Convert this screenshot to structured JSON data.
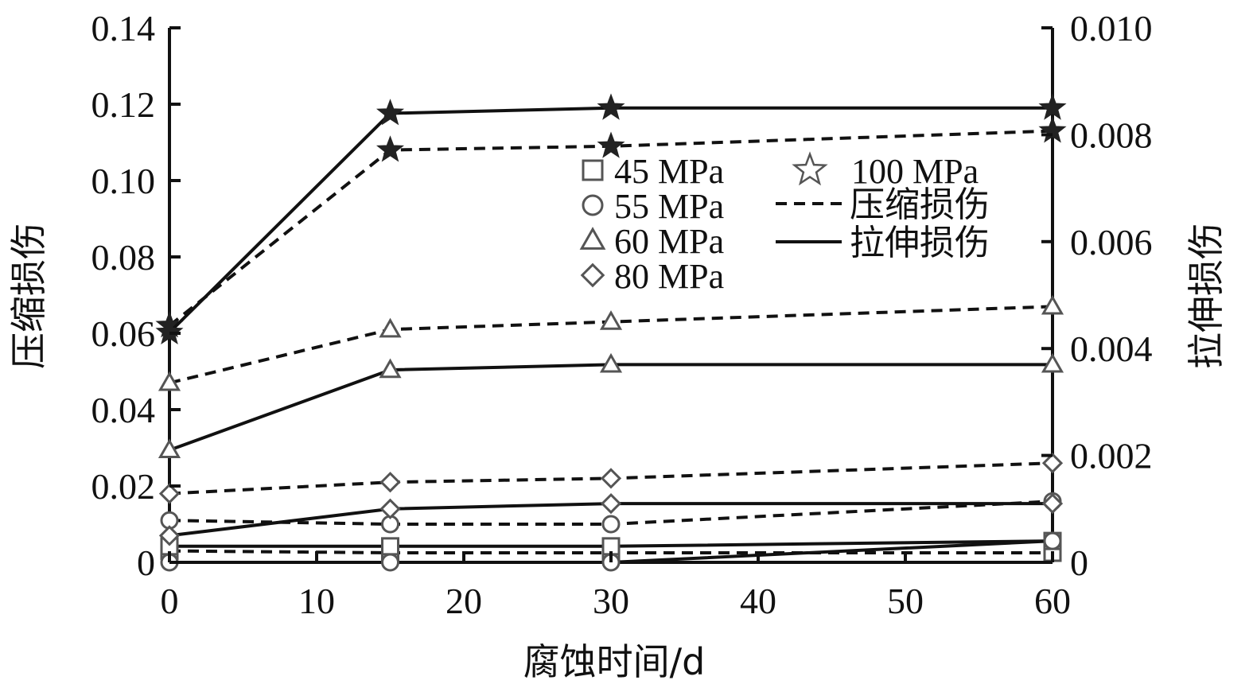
{
  "chart_data": {
    "type": "line",
    "xlabel": "腐蚀时间/d",
    "ylabel": "压缩损伤",
    "y2label": "拉伸损伤",
    "xlim": [
      0,
      60
    ],
    "ylim": [
      0,
      0.14
    ],
    "y2lim": [
      0,
      0.01
    ],
    "x_ticks": [
      0,
      10,
      20,
      30,
      40,
      50,
      60
    ],
    "x_tick_labels": [
      "0",
      "10",
      "20",
      "30",
      "40",
      "50",
      "60"
    ],
    "y_ticks": [
      0,
      0.02,
      0.04,
      0.06,
      0.08,
      0.1,
      0.12,
      0.14
    ],
    "y_tick_labels": [
      "0",
      "0.02",
      "0.04",
      "0.06",
      "0.08",
      "0.10",
      "0.12",
      "0.14"
    ],
    "y2_ticks": [
      0,
      0.002,
      0.004,
      0.006,
      0.008,
      0.01
    ],
    "y2_tick_labels": [
      "0",
      "0.002",
      "0.004",
      "0.006",
      "0.008",
      "0.010"
    ],
    "grid": false,
    "legend": {
      "position": "upper-middle",
      "markers": [
        {
          "marker": "square",
          "label": "45 MPa"
        },
        {
          "marker": "circle",
          "label": "55 MPa"
        },
        {
          "marker": "triangle",
          "label": "60 MPa"
        },
        {
          "marker": "diamond",
          "label": "80 MPa"
        },
        {
          "marker": "star",
          "label": "100 MPa"
        }
      ],
      "lines": [
        {
          "style": "dashed",
          "label": "压缩损伤"
        },
        {
          "style": "solid",
          "label": "拉伸损伤"
        }
      ]
    },
    "x": [
      0,
      15,
      30,
      60
    ],
    "series": [
      {
        "name": "45 MPa",
        "kind": "压缩损伤",
        "axis": "left",
        "marker": "square",
        "style": "dashed",
        "values": [
          0.003,
          0.0025,
          0.0025,
          0.0025
        ]
      },
      {
        "name": "45 MPa",
        "kind": "拉伸损伤",
        "axis": "right",
        "marker": "square",
        "style": "solid",
        "values": [
          0.0003,
          0.0003,
          0.0003,
          0.0004
        ]
      },
      {
        "name": "55 MPa",
        "kind": "压缩损伤",
        "axis": "left",
        "marker": "circle",
        "style": "dashed",
        "values": [
          0.011,
          0.01,
          0.01,
          0.016
        ]
      },
      {
        "name": "55 MPa",
        "kind": "拉伸损伤",
        "axis": "right",
        "marker": "circle",
        "style": "solid",
        "values": [
          0.0,
          0.0,
          0.0,
          0.0004
        ]
      },
      {
        "name": "60 MPa",
        "kind": "压缩损伤",
        "axis": "left",
        "marker": "triangle",
        "style": "dashed",
        "values": [
          0.047,
          0.061,
          0.063,
          0.067
        ]
      },
      {
        "name": "60 MPa",
        "kind": "拉伸损伤",
        "axis": "right",
        "marker": "triangle",
        "style": "solid",
        "values": [
          0.0021,
          0.0036,
          0.0037,
          0.0037
        ]
      },
      {
        "name": "80 MPa",
        "kind": "压缩损伤",
        "axis": "left",
        "marker": "diamond",
        "style": "dashed",
        "values": [
          0.018,
          0.021,
          0.022,
          0.026
        ]
      },
      {
        "name": "80 MPa",
        "kind": "拉伸损伤",
        "axis": "right",
        "marker": "diamond",
        "style": "solid",
        "values": [
          0.0005,
          0.001,
          0.0011,
          0.0011
        ]
      },
      {
        "name": "100 MPa",
        "kind": "压缩损伤",
        "axis": "left",
        "marker": "star",
        "style": "dashed",
        "values": [
          0.062,
          0.108,
          0.109,
          0.113
        ]
      },
      {
        "name": "100 MPa",
        "kind": "拉伸损伤",
        "axis": "right",
        "marker": "star",
        "style": "solid",
        "values": [
          0.0043,
          0.0084,
          0.0085,
          0.0085
        ]
      }
    ]
  }
}
